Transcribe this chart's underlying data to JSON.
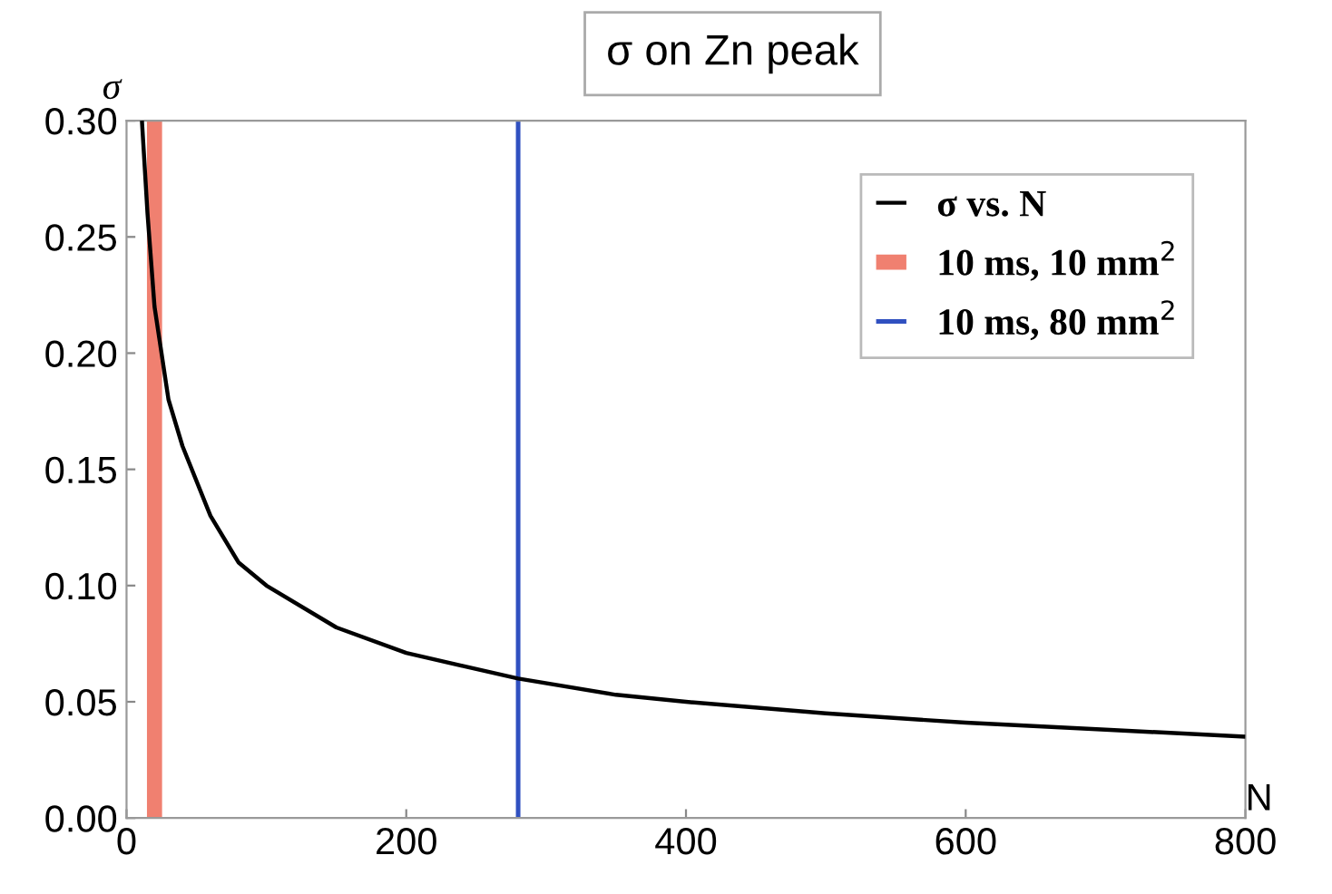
{
  "chart_data": {
    "type": "line",
    "title": "σ on Zn peak",
    "xlabel": "N",
    "ylabel": "σ",
    "series": [
      {
        "name": "σ vs. N",
        "color": "#000000",
        "x": [
          11,
          15,
          20,
          30,
          40,
          60,
          80,
          100,
          150,
          200,
          280,
          350,
          400,
          500,
          600,
          700,
          800
        ],
        "values": [
          0.3,
          0.26,
          0.22,
          0.18,
          0.16,
          0.13,
          0.11,
          0.1,
          0.082,
          0.071,
          0.06,
          0.053,
          0.05,
          0.045,
          0.041,
          0.038,
          0.035
        ]
      },
      {
        "name": "10 ms, 10 mm$^{2}$",
        "color": "#f08070",
        "x": [
          20,
          20
        ],
        "values": [
          0,
          0.3
        ]
      },
      {
        "name": "10 ms, 80 mm$^{2}$",
        "color": "#3050c0",
        "x": [
          280,
          280
        ],
        "values": [
          0,
          0.3
        ]
      }
    ],
    "xlim": [
      0,
      800
    ],
    "xticks": [
      0,
      200,
      400,
      600,
      800
    ],
    "ylim": [
      0,
      0.3
    ],
    "yticks": [
      {
        "value": 0,
        "label": "0.00"
      },
      {
        "value": 0.05,
        "label": "0.05"
      },
      {
        "value": 0.1,
        "label": "0.10"
      },
      {
        "value": 0.15,
        "label": "0.15"
      },
      {
        "value": 0.2,
        "label": "0.20"
      },
      {
        "value": 0.25,
        "label": "0.25"
      },
      {
        "value": 0.3,
        "label": "0.30"
      }
    ],
    "grid": false,
    "legend": "top right",
    "line_style": "solid",
    "marker": "none"
  }
}
